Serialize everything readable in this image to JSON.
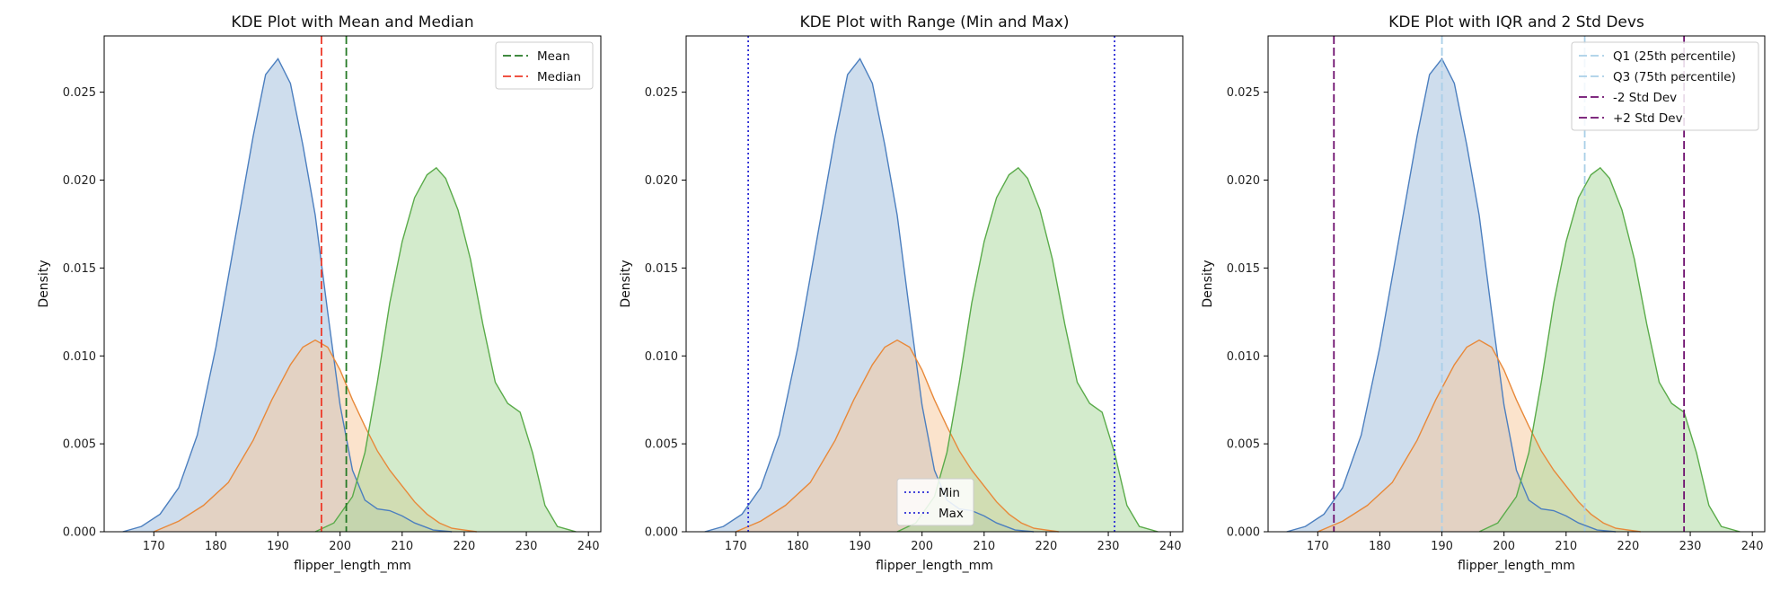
{
  "chart_data": [
    {
      "type": "area",
      "title": "KDE Plot with Mean and Median",
      "xlabel": "flipper_length_mm",
      "ylabel": "Density",
      "xlim": [
        162,
        242
      ],
      "ylim": [
        0,
        0.0282
      ],
      "xticks": [
        170,
        180,
        190,
        200,
        210,
        220,
        230,
        240
      ],
      "yticks": [
        0.0,
        0.005,
        0.01,
        0.015,
        0.02,
        0.025
      ],
      "ytick_labels": [
        "0.000",
        "0.005",
        "0.010",
        "0.015",
        "0.020",
        "0.025"
      ],
      "grid": false,
      "legend_position": "top-right",
      "series": [
        {
          "color": "#4c7fbf",
          "fill": "#9ebcdc",
          "x": [
            165,
            168,
            171,
            174,
            177,
            180,
            183,
            186,
            188,
            190,
            192,
            194,
            196,
            198,
            200,
            202,
            204,
            206,
            208,
            210,
            212,
            215,
            218
          ],
          "values": [
            0.0,
            0.0003,
            0.001,
            0.0025,
            0.0055,
            0.0105,
            0.0165,
            0.0225,
            0.026,
            0.0269,
            0.0255,
            0.022,
            0.018,
            0.0125,
            0.0072,
            0.0035,
            0.0018,
            0.0013,
            0.0012,
            0.0009,
            0.0005,
            0.0001,
            0.0
          ]
        },
        {
          "color": "#e8893a",
          "fill": "#f7c79a",
          "x": [
            170,
            174,
            178,
            182,
            186,
            189,
            192,
            194,
            196,
            198,
            200,
            202,
            204,
            206,
            208,
            210,
            212,
            214,
            216,
            218,
            220,
            222
          ],
          "values": [
            0.0,
            0.0006,
            0.0015,
            0.0028,
            0.0052,
            0.0075,
            0.0095,
            0.0105,
            0.0109,
            0.0105,
            0.0092,
            0.0075,
            0.006,
            0.0046,
            0.0035,
            0.0026,
            0.0017,
            0.001,
            0.0005,
            0.0002,
            0.0001,
            0.0
          ]
        },
        {
          "color": "#5aab4a",
          "fill": "#a8d89a",
          "x": [
            196,
            199,
            202,
            204,
            206,
            208,
            210,
            212,
            214,
            215.5,
            217,
            219,
            221,
            223,
            225,
            227,
            229,
            231,
            233,
            235,
            238
          ],
          "values": [
            0.0,
            0.0005,
            0.002,
            0.0045,
            0.0085,
            0.013,
            0.0165,
            0.019,
            0.0203,
            0.0207,
            0.0201,
            0.0183,
            0.0155,
            0.0118,
            0.0085,
            0.0073,
            0.0068,
            0.0045,
            0.0015,
            0.0003,
            0.0
          ]
        }
      ],
      "vlines": [
        {
          "name": "Mean",
          "x": 201.0,
          "color": "#267a26",
          "dash": "dashed"
        },
        {
          "name": "Median",
          "x": 197.0,
          "color": "#ee3b2a",
          "dash": "dashed"
        }
      ]
    },
    {
      "type": "area",
      "title": "KDE Plot with Range (Min and Max)",
      "xlabel": "flipper_length_mm",
      "ylabel": "Density",
      "xlim": [
        162,
        242
      ],
      "ylim": [
        0,
        0.0282
      ],
      "xticks": [
        170,
        180,
        190,
        200,
        210,
        220,
        230,
        240
      ],
      "yticks": [
        0.0,
        0.005,
        0.01,
        0.015,
        0.02,
        0.025
      ],
      "ytick_labels": [
        "0.000",
        "0.005",
        "0.010",
        "0.015",
        "0.020",
        "0.025"
      ],
      "grid": false,
      "legend_position": "bottom-center",
      "series": [
        {
          "color": "#4c7fbf",
          "fill": "#9ebcdc",
          "x": [
            165,
            168,
            171,
            174,
            177,
            180,
            183,
            186,
            188,
            190,
            192,
            194,
            196,
            198,
            200,
            202,
            204,
            206,
            208,
            210,
            212,
            215,
            218
          ],
          "values": [
            0.0,
            0.0003,
            0.001,
            0.0025,
            0.0055,
            0.0105,
            0.0165,
            0.0225,
            0.026,
            0.0269,
            0.0255,
            0.022,
            0.018,
            0.0125,
            0.0072,
            0.0035,
            0.0018,
            0.0013,
            0.0012,
            0.0009,
            0.0005,
            0.0001,
            0.0
          ]
        },
        {
          "color": "#e8893a",
          "fill": "#f7c79a",
          "x": [
            170,
            174,
            178,
            182,
            186,
            189,
            192,
            194,
            196,
            198,
            200,
            202,
            204,
            206,
            208,
            210,
            212,
            214,
            216,
            218,
            220,
            222
          ],
          "values": [
            0.0,
            0.0006,
            0.0015,
            0.0028,
            0.0052,
            0.0075,
            0.0095,
            0.0105,
            0.0109,
            0.0105,
            0.0092,
            0.0075,
            0.006,
            0.0046,
            0.0035,
            0.0026,
            0.0017,
            0.001,
            0.0005,
            0.0002,
            0.0001,
            0.0
          ]
        },
        {
          "color": "#5aab4a",
          "fill": "#a8d89a",
          "x": [
            196,
            199,
            202,
            204,
            206,
            208,
            210,
            212,
            214,
            215.5,
            217,
            219,
            221,
            223,
            225,
            227,
            229,
            231,
            233,
            235,
            238
          ],
          "values": [
            0.0,
            0.0005,
            0.002,
            0.0045,
            0.0085,
            0.013,
            0.0165,
            0.019,
            0.0203,
            0.0207,
            0.0201,
            0.0183,
            0.0155,
            0.0118,
            0.0085,
            0.0073,
            0.0068,
            0.0045,
            0.0015,
            0.0003,
            0.0
          ]
        }
      ],
      "vlines": [
        {
          "name": "Min",
          "x": 172,
          "color": "#2b2bd6",
          "dash": "dotted"
        },
        {
          "name": "Max",
          "x": 231,
          "color": "#2b2bd6",
          "dash": "dotted"
        }
      ]
    },
    {
      "type": "area",
      "title": "KDE Plot with IQR and 2 Std Devs",
      "xlabel": "flipper_length_mm",
      "ylabel": "Density",
      "xlim": [
        162,
        242
      ],
      "ylim": [
        0,
        0.0282
      ],
      "xticks": [
        170,
        180,
        190,
        200,
        210,
        220,
        230,
        240
      ],
      "yticks": [
        0.0,
        0.005,
        0.01,
        0.015,
        0.02,
        0.025
      ],
      "ytick_labels": [
        "0.000",
        "0.005",
        "0.010",
        "0.015",
        "0.020",
        "0.025"
      ],
      "grid": false,
      "legend_position": "top-right",
      "series": [
        {
          "color": "#4c7fbf",
          "fill": "#9ebcdc",
          "x": [
            165,
            168,
            171,
            174,
            177,
            180,
            183,
            186,
            188,
            190,
            192,
            194,
            196,
            198,
            200,
            202,
            204,
            206,
            208,
            210,
            212,
            215,
            218
          ],
          "values": [
            0.0,
            0.0003,
            0.001,
            0.0025,
            0.0055,
            0.0105,
            0.0165,
            0.0225,
            0.026,
            0.0269,
            0.0255,
            0.022,
            0.018,
            0.0125,
            0.0072,
            0.0035,
            0.0018,
            0.0013,
            0.0012,
            0.0009,
            0.0005,
            0.0001,
            0.0
          ]
        },
        {
          "color": "#e8893a",
          "fill": "#f7c79a",
          "x": [
            170,
            174,
            178,
            182,
            186,
            189,
            192,
            194,
            196,
            198,
            200,
            202,
            204,
            206,
            208,
            210,
            212,
            214,
            216,
            218,
            220,
            222
          ],
          "values": [
            0.0,
            0.0006,
            0.0015,
            0.0028,
            0.0052,
            0.0075,
            0.0095,
            0.0105,
            0.0109,
            0.0105,
            0.0092,
            0.0075,
            0.006,
            0.0046,
            0.0035,
            0.0026,
            0.0017,
            0.001,
            0.0005,
            0.0002,
            0.0001,
            0.0
          ]
        },
        {
          "color": "#5aab4a",
          "fill": "#a8d89a",
          "x": [
            196,
            199,
            202,
            204,
            206,
            208,
            210,
            212,
            214,
            215.5,
            217,
            219,
            221,
            223,
            225,
            227,
            229,
            231,
            233,
            235,
            238
          ],
          "values": [
            0.0,
            0.0005,
            0.002,
            0.0045,
            0.0085,
            0.013,
            0.0165,
            0.019,
            0.0203,
            0.0207,
            0.0201,
            0.0183,
            0.0155,
            0.0118,
            0.0085,
            0.0073,
            0.0068,
            0.0045,
            0.0015,
            0.0003,
            0.0
          ]
        }
      ],
      "vlines": [
        {
          "name": "Q1 (25th percentile)",
          "x": 190,
          "color": "#a9cfe8",
          "dash": "dashed"
        },
        {
          "name": "Q3 (75th percentile)",
          "x": 213,
          "color": "#a9cfe8",
          "dash": "dashed"
        },
        {
          "name": "-2 Std Dev",
          "x": 172.6,
          "color": "#6e0f6e",
          "dash": "dashed"
        },
        {
          "name": "+2 Std Dev",
          "x": 229.0,
          "color": "#6e0f6e",
          "dash": "dashed"
        }
      ]
    }
  ]
}
